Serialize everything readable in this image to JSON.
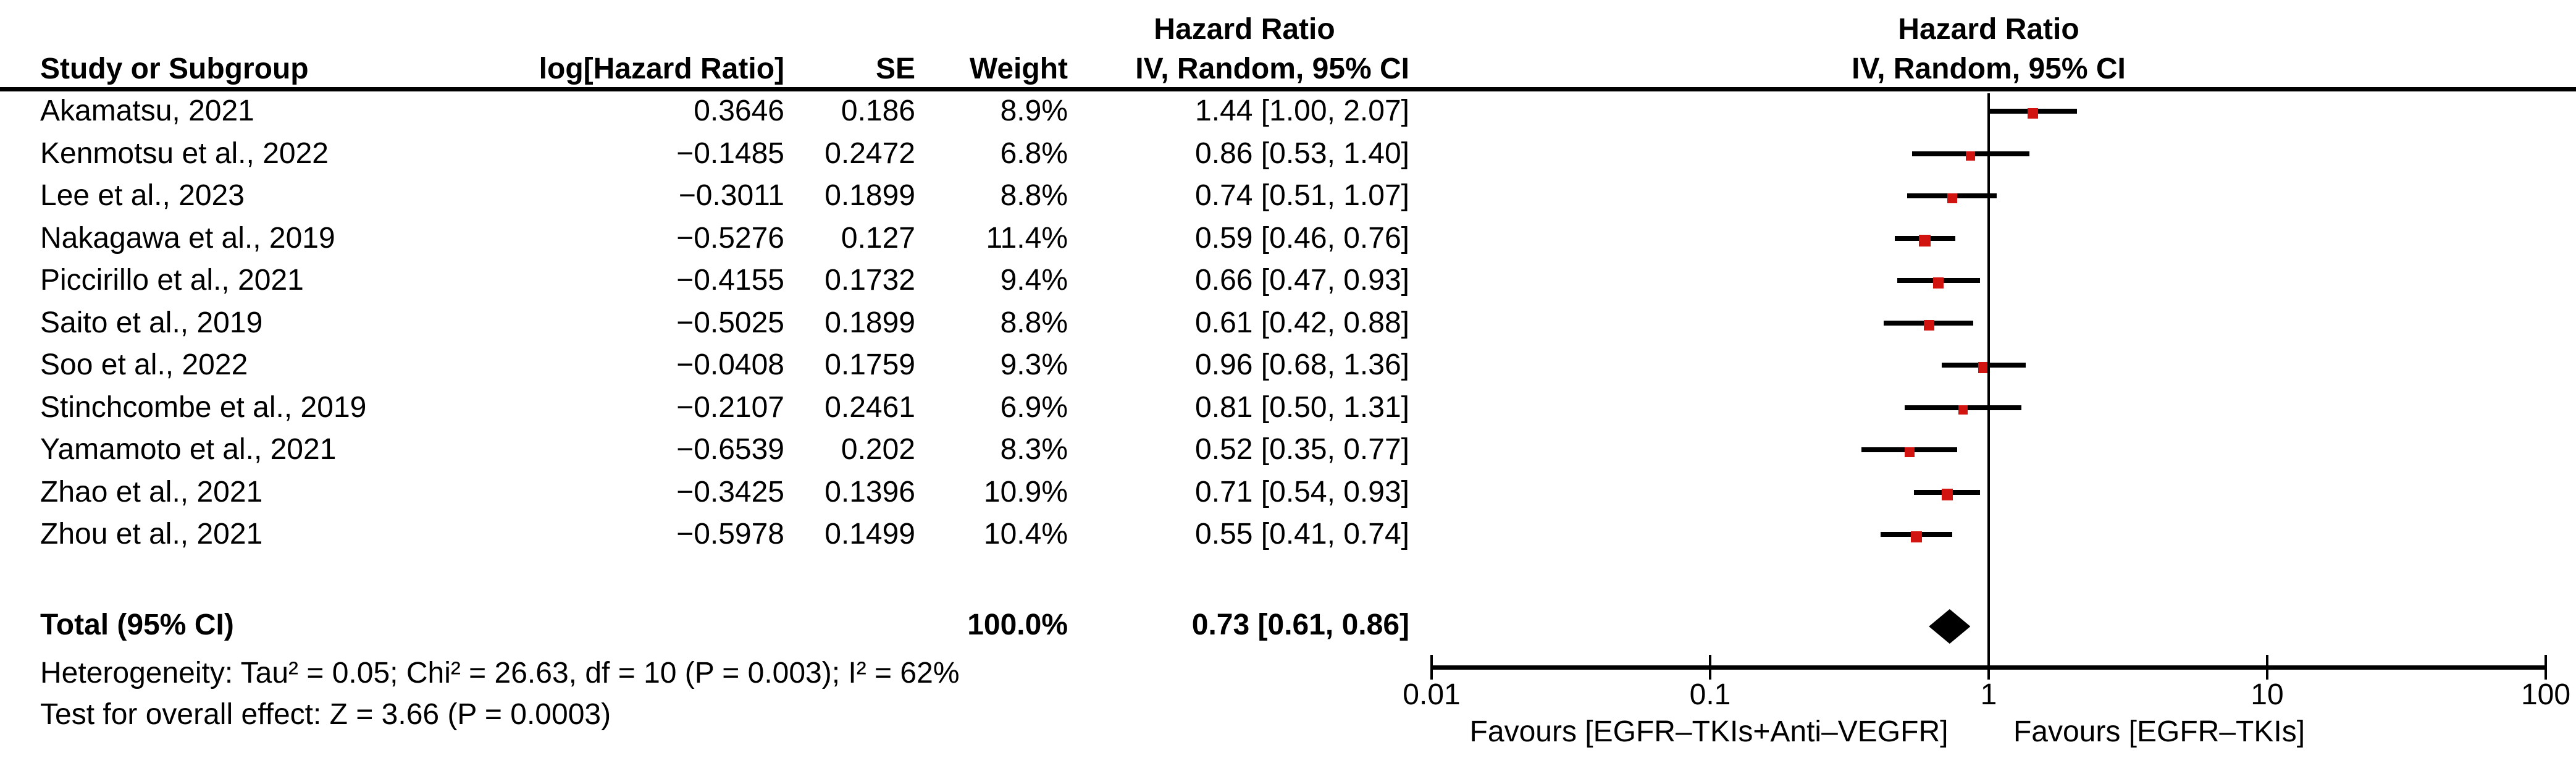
{
  "chart_data": {
    "type": "forest",
    "columns": {
      "study": "Study or Subgroup",
      "log_hr": "log[Hazard Ratio]",
      "se": "SE",
      "weight": "Weight"
    },
    "effect_header_left": {
      "line1": "Hazard Ratio",
      "line2": "IV, Random, 95% CI"
    },
    "effect_header_right": {
      "line1": "Hazard Ratio",
      "line2": "IV, Random, 95% CI"
    },
    "studies": [
      {
        "name": "Akamatsu, 2021",
        "log_hr": "0.3646",
        "se": "0.186",
        "weight": "8.9%",
        "ci_text": "1.44 [1.00, 2.07]",
        "hr": 1.44,
        "lo": 1.0,
        "hi": 2.07,
        "weight_pct": 8.9
      },
      {
        "name": "Kenmotsu et al., 2022",
        "log_hr": "−0.1485",
        "se": "0.2472",
        "weight": "6.8%",
        "ci_text": "0.86 [0.53, 1.40]",
        "hr": 0.86,
        "lo": 0.53,
        "hi": 1.4,
        "weight_pct": 6.8
      },
      {
        "name": "Lee et al., 2023",
        "log_hr": "−0.3011",
        "se": "0.1899",
        "weight": "8.8%",
        "ci_text": "0.74 [0.51, 1.07]",
        "hr": 0.74,
        "lo": 0.51,
        "hi": 1.07,
        "weight_pct": 8.8
      },
      {
        "name": "Nakagawa et al., 2019",
        "log_hr": "−0.5276",
        "se": "0.127",
        "weight": "11.4%",
        "ci_text": "0.59 [0.46, 0.76]",
        "hr": 0.59,
        "lo": 0.46,
        "hi": 0.76,
        "weight_pct": 11.4
      },
      {
        "name": "Piccirillo et al., 2021",
        "log_hr": "−0.4155",
        "se": "0.1732",
        "weight": "9.4%",
        "ci_text": "0.66 [0.47, 0.93]",
        "hr": 0.66,
        "lo": 0.47,
        "hi": 0.93,
        "weight_pct": 9.4
      },
      {
        "name": "Saito et al., 2019",
        "log_hr": "−0.5025",
        "se": "0.1899",
        "weight": "8.8%",
        "ci_text": "0.61 [0.42, 0.88]",
        "hr": 0.61,
        "lo": 0.42,
        "hi": 0.88,
        "weight_pct": 8.8
      },
      {
        "name": "Soo et al., 2022",
        "log_hr": "−0.0408",
        "se": "0.1759",
        "weight": "9.3%",
        "ci_text": "0.96 [0.68, 1.36]",
        "hr": 0.96,
        "lo": 0.68,
        "hi": 1.36,
        "weight_pct": 9.3
      },
      {
        "name": "Stinchcombe et al., 2019",
        "log_hr": "−0.2107",
        "se": "0.2461",
        "weight": "6.9%",
        "ci_text": "0.81 [0.50, 1.31]",
        "hr": 0.81,
        "lo": 0.5,
        "hi": 1.31,
        "weight_pct": 6.9
      },
      {
        "name": "Yamamoto et al., 2021",
        "log_hr": "−0.6539",
        "se": "0.202",
        "weight": "8.3%",
        "ci_text": "0.52 [0.35, 0.77]",
        "hr": 0.52,
        "lo": 0.35,
        "hi": 0.77,
        "weight_pct": 8.3
      },
      {
        "name": "Zhao et al., 2021",
        "log_hr": "−0.3425",
        "se": "0.1396",
        "weight": "10.9%",
        "ci_text": "0.71 [0.54, 0.93]",
        "hr": 0.71,
        "lo": 0.54,
        "hi": 0.93,
        "weight_pct": 10.9
      },
      {
        "name": "Zhou et al., 2021",
        "log_hr": "−0.5978",
        "se": "0.1499",
        "weight": "10.4%",
        "ci_text": "0.55 [0.41, 0.74]",
        "hr": 0.55,
        "lo": 0.41,
        "hi": 0.74,
        "weight_pct": 10.4
      }
    ],
    "total": {
      "label": "Total (95% CI)",
      "weight": "100.0%",
      "ci_text": "0.73 [0.61, 0.86]",
      "hr": 0.73,
      "lo": 0.61,
      "hi": 0.86
    },
    "heterogeneity": "Heterogeneity: Tau² = 0.05; Chi² = 26.63, df = 10 (P = 0.003); I² = 62%",
    "overall_effect": "Test for overall effect: Z = 3.66 (P = 0.0003)",
    "axis": {
      "scale": "log",
      "ticks": [
        0.01,
        0.1,
        1,
        10,
        100
      ],
      "tick_labels": [
        "0.01",
        "0.1",
        "1",
        "10",
        "100"
      ],
      "line_of_no_effect": 1
    },
    "favours_left": "Favours [EGFR–TKIs+Anti–VEGFR]",
    "favours_right": "Favours [EGFR–TKIs]",
    "colors": {
      "marker_square": "#D21410",
      "diamond": "#000000",
      "text": "#000000",
      "background": "#FFFFFF"
    }
  }
}
